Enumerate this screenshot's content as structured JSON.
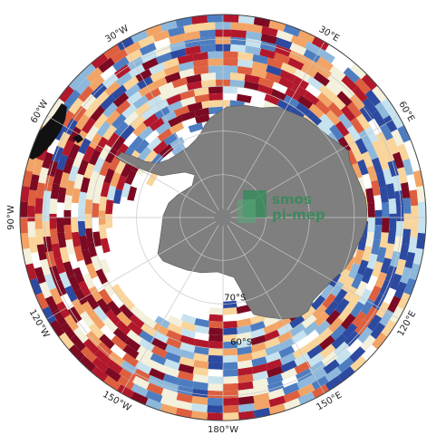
{
  "map": {
    "projection": "south-polar-stereographic",
    "longitude_labels": [
      {
        "text": "30°W",
        "lon": -30
      },
      {
        "text": "30°E",
        "lon": 30
      },
      {
        "text": "60°W",
        "lon": -60
      },
      {
        "text": "60°E",
        "lon": 60
      },
      {
        "text": "90°W",
        "lon": -90
      },
      {
        "text": "120°W",
        "lon": -120
      },
      {
        "text": "120°E",
        "lon": 120
      },
      {
        "text": "150°W",
        "lon": -150
      },
      {
        "text": "150°E",
        "lon": 150
      },
      {
        "text": "180°W",
        "lon": 180
      }
    ],
    "latitude_labels": [
      {
        "text": "70°S",
        "lat": -70
      },
      {
        "text": "60°S",
        "lat": -60
      }
    ],
    "colors": {
      "land": "#7f7f7f",
      "ocean_missing": "#ffffff",
      "graticule": "#c8c8c8",
      "outline": "#444444",
      "palette": [
        "#2c4aa0",
        "#4d7dc0",
        "#8db8dc",
        "#c6e2ee",
        "#f3f0dc",
        "#f9d49b",
        "#f2a466",
        "#dd5f3f",
        "#b2182b",
        "#7b0a22"
      ]
    },
    "watermark": {
      "line1": "smos",
      "line2": "pi-mep",
      "color": "#2e8b57"
    }
  }
}
